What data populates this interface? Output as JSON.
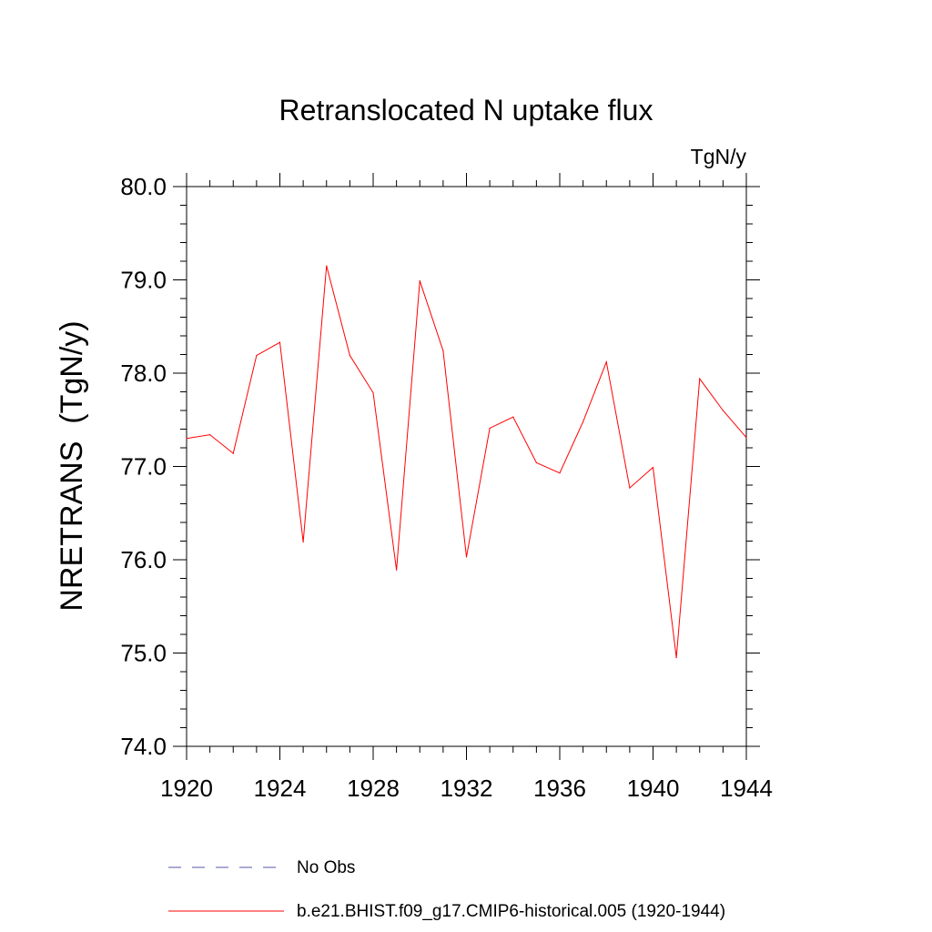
{
  "chart_data": {
    "type": "line",
    "title": "Retranslocated N uptake flux",
    "units_label": "TgN/y",
    "ylabel": "NRETRANS  (TgN/y)",
    "xlabel": "",
    "xlim": [
      1920,
      1944
    ],
    "ylim": [
      74.0,
      80.0
    ],
    "x_ticks": [
      "1920",
      "1924",
      "1928",
      "1932",
      "1936",
      "1940",
      "1944"
    ],
    "y_ticks": [
      "74.0",
      "75.0",
      "76.0",
      "77.0",
      "78.0",
      "79.0",
      "80.0"
    ],
    "grid": false,
    "legend_position": "bottom",
    "legend": [
      {
        "label": "No Obs",
        "style": "dashed",
        "color": "#5555aa"
      },
      {
        "label": "b.e21.BHIST.f09_g17.CMIP6-historical.005 (1920-1944)",
        "style": "solid",
        "color": "#ff0000"
      }
    ],
    "series": [
      {
        "name": "b.e21.BHIST.f09_g17.CMIP6-historical.005 (1920-1944)",
        "color": "#ff0000",
        "x": [
          1920,
          1921,
          1922,
          1923,
          1924,
          1925,
          1926,
          1927,
          1928,
          1929,
          1930,
          1931,
          1932,
          1933,
          1934,
          1935,
          1936,
          1937,
          1938,
          1939,
          1940,
          1941,
          1942,
          1943,
          1944
        ],
        "y": [
          77.3,
          77.34,
          77.14,
          78.19,
          78.33,
          76.19,
          79.15,
          78.19,
          77.79,
          75.89,
          78.99,
          78.24,
          76.03,
          77.41,
          77.53,
          77.04,
          76.93,
          77.48,
          78.12,
          76.77,
          76.99,
          74.95,
          77.94,
          77.6,
          77.31
        ]
      }
    ]
  }
}
